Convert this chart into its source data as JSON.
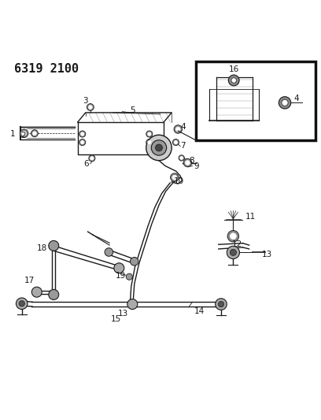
{
  "title_text": "6319 2100",
  "bg_color": "#ffffff",
  "line_color": "#1a1a1a",
  "text_color": "#1a1a1a",
  "title_fontsize": 11,
  "label_fontsize": 7.5
}
